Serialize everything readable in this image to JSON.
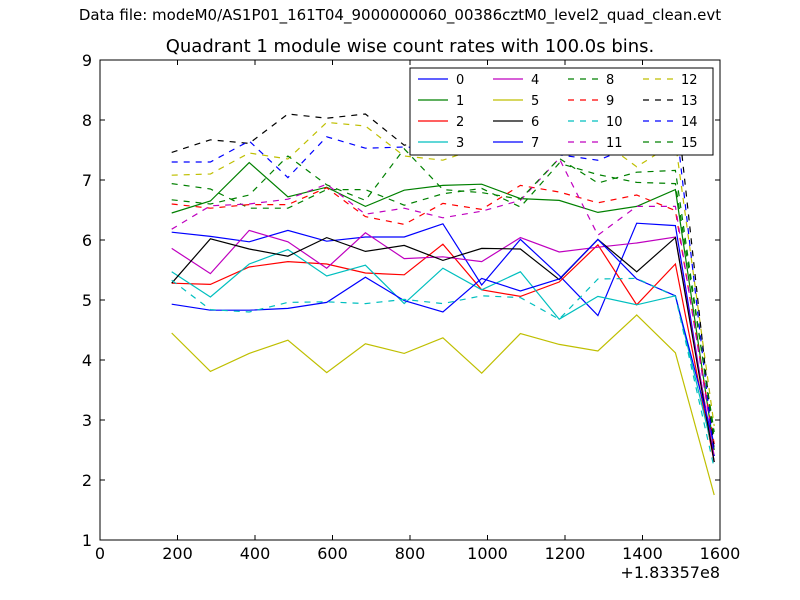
{
  "header": {
    "suptitle": "Data file: modeM0/AS1P01_161T04_9000000060_00386cztM0_level2_quad_clean.evt",
    "title": "Quadrant 1 module wise count rates with 100.0s bins."
  },
  "chart_data": {
    "type": "line",
    "title": "Quadrant 1 module wise count rates with 100.0s bins.",
    "xlabel": "",
    "ylabel": "",
    "xlim": [
      0,
      1600
    ],
    "ylim": [
      1,
      9
    ],
    "x_offset_label": "+1.83357e8",
    "xticks": [
      0,
      200,
      400,
      600,
      800,
      1000,
      1200,
      1400,
      1600
    ],
    "yticks": [
      1,
      2,
      3,
      4,
      5,
      6,
      7,
      8,
      9
    ],
    "grid": false,
    "legend_position": "top-right",
    "x": [
      185,
      285,
      385,
      485,
      585,
      685,
      785,
      885,
      985,
      1085,
      1185,
      1285,
      1385,
      1485,
      1585
    ],
    "series": [
      {
        "name": "0",
        "color": "#0000ff",
        "style": "solid",
        "values": [
          6.13,
          6.06,
          5.97,
          6.16,
          5.98,
          6.05,
          6.05,
          6.27,
          5.25,
          6.01,
          5.41,
          4.74,
          6.28,
          6.24,
          2.3
        ]
      },
      {
        "name": "1",
        "color": "#008000",
        "style": "solid",
        "values": [
          6.45,
          6.65,
          7.29,
          6.72,
          6.88,
          6.56,
          6.83,
          6.91,
          6.93,
          6.69,
          6.66,
          6.46,
          6.56,
          6.84,
          2.5
        ]
      },
      {
        "name": "2",
        "color": "#ff0000",
        "style": "solid",
        "values": [
          5.28,
          5.26,
          5.55,
          5.64,
          5.6,
          5.45,
          5.42,
          5.93,
          5.17,
          5.06,
          5.3,
          5.92,
          4.92,
          5.6,
          2.3
        ]
      },
      {
        "name": "3",
        "color": "#00bfbf",
        "style": "solid",
        "values": [
          5.47,
          5.05,
          5.6,
          5.84,
          5.4,
          5.58,
          4.94,
          5.53,
          5.17,
          5.47,
          4.68,
          5.06,
          4.92,
          5.07,
          2.4
        ]
      },
      {
        "name": "4",
        "color": "#bf00bf",
        "style": "solid",
        "values": [
          5.86,
          5.44,
          6.16,
          5.97,
          5.53,
          6.12,
          5.69,
          5.72,
          5.64,
          6.04,
          5.8,
          5.88,
          5.95,
          6.05,
          2.4
        ]
      },
      {
        "name": "5",
        "color": "#bfbf00",
        "style": "solid",
        "values": [
          4.45,
          3.81,
          4.11,
          4.33,
          3.79,
          4.27,
          4.11,
          4.37,
          3.78,
          4.44,
          4.26,
          4.15,
          4.75,
          4.12,
          1.75
        ]
      },
      {
        "name": "6",
        "color": "#000000",
        "style": "solid",
        "values": [
          5.28,
          6.02,
          5.85,
          5.73,
          6.04,
          5.81,
          5.91,
          5.66,
          5.86,
          5.85,
          5.34,
          6.01,
          5.47,
          6.04,
          2.3
        ]
      },
      {
        "name": "7",
        "color": "#0000ff",
        "style": "solid",
        "values": [
          4.93,
          4.83,
          4.83,
          4.86,
          4.96,
          5.38,
          4.99,
          4.8,
          5.36,
          5.15,
          5.35,
          6.01,
          5.35,
          5.07,
          2.6
        ]
      },
      {
        "name": "8",
        "color": "#008000",
        "style": "dashed",
        "values": [
          6.94,
          6.85,
          6.53,
          6.53,
          6.84,
          6.84,
          6.58,
          6.77,
          6.86,
          6.55,
          7.28,
          7.09,
          6.96,
          6.94,
          2.8
        ]
      },
      {
        "name": "9",
        "color": "#ff0000",
        "style": "dashed",
        "values": [
          6.6,
          6.53,
          6.59,
          6.59,
          6.87,
          6.39,
          6.26,
          6.61,
          6.51,
          6.91,
          6.8,
          6.62,
          6.75,
          6.49,
          2.6
        ]
      },
      {
        "name": "10",
        "color": "#00bfbf",
        "style": "dashed",
        "values": [
          5.33,
          4.84,
          4.8,
          4.96,
          4.97,
          4.94,
          5.01,
          4.94,
          5.07,
          5.04,
          4.68,
          5.35,
          5.36,
          5.06,
          2.2
        ]
      },
      {
        "name": "11",
        "color": "#bf00bf",
        "style": "dashed",
        "values": [
          6.18,
          6.57,
          6.6,
          6.68,
          6.93,
          6.43,
          6.53,
          6.37,
          6.48,
          6.66,
          7.36,
          6.08,
          6.56,
          6.56,
          2.5
        ]
      },
      {
        "name": "12",
        "color": "#bfbf00",
        "style": "dashed",
        "values": [
          7.08,
          7.1,
          7.45,
          7.35,
          7.96,
          7.9,
          7.4,
          7.33,
          7.55,
          7.61,
          7.8,
          7.7,
          7.22,
          7.63,
          2.9
        ]
      },
      {
        "name": "13",
        "color": "#000000",
        "style": "dashed",
        "values": [
          7.46,
          7.67,
          7.61,
          8.1,
          8.03,
          8.1,
          7.58,
          7.71,
          7.85,
          7.88,
          7.76,
          7.86,
          7.95,
          8.42,
          2.5
        ]
      },
      {
        "name": "14",
        "color": "#0000ff",
        "style": "dashed",
        "values": [
          7.3,
          7.3,
          7.65,
          7.04,
          7.72,
          7.53,
          7.55,
          7.52,
          7.53,
          7.77,
          7.42,
          7.33,
          7.58,
          8.02,
          2.4
        ]
      },
      {
        "name": "15",
        "color": "#008000",
        "style": "dashed",
        "values": [
          6.67,
          6.6,
          6.75,
          7.4,
          6.92,
          6.66,
          7.52,
          6.84,
          6.79,
          6.68,
          7.36,
          6.95,
          7.13,
          7.16,
          2.7
        ]
      }
    ]
  }
}
